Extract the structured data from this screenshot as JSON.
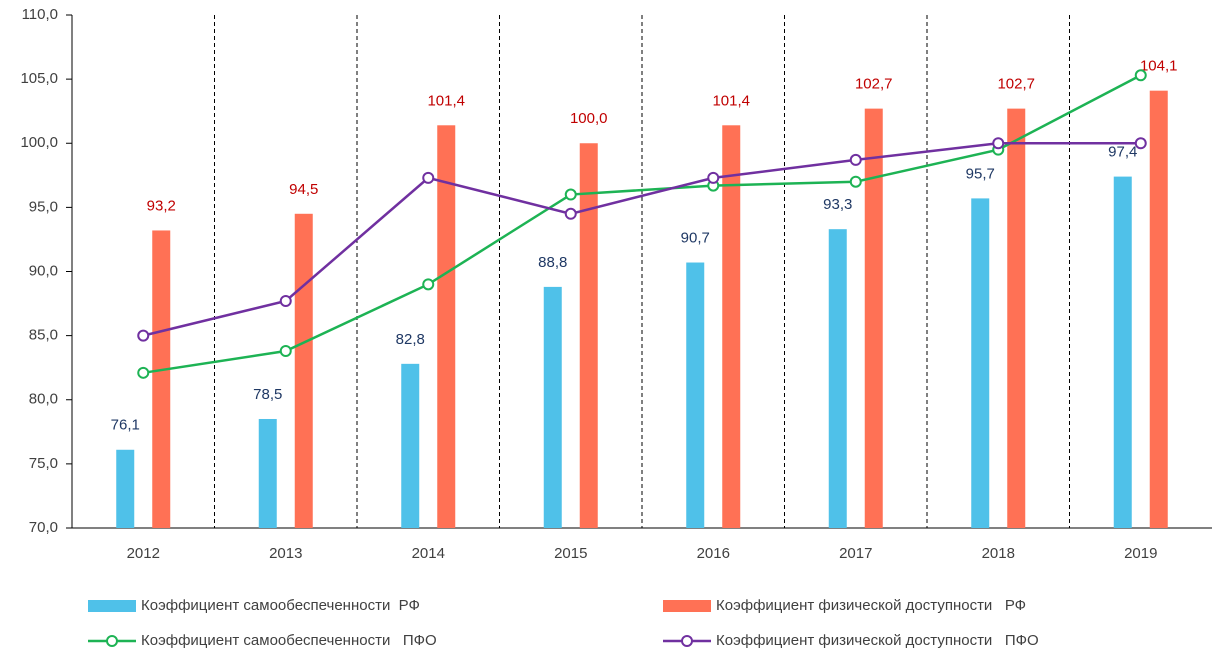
{
  "chart_data": {
    "type": "combo",
    "categories": [
      "2012",
      "2013",
      "2014",
      "2015",
      "2016",
      "2017",
      "2018",
      "2019"
    ],
    "ylim": [
      70,
      110
    ],
    "yticks": [
      {
        "value": 70,
        "label": "70,0"
      },
      {
        "value": 75,
        "label": "75,0"
      },
      {
        "value": 80,
        "label": "80,0"
      },
      {
        "value": 85,
        "label": "85,0"
      },
      {
        "value": 90,
        "label": "90,0"
      },
      {
        "value": 95,
        "label": "95,0"
      },
      {
        "value": 100,
        "label": "100,0"
      },
      {
        "value": 105,
        "label": "105,0"
      },
      {
        "value": 110,
        "label": "110,0"
      }
    ],
    "legend": "bottom",
    "series": [
      {
        "name": "Коэффициент самообеспеченности  РФ",
        "type": "bar",
        "color": "#4fc1e9",
        "label_color": "#1f3864",
        "values": [
          76.1,
          78.5,
          82.8,
          88.8,
          90.7,
          93.3,
          95.7,
          97.4
        ],
        "value_labels": [
          "76,1",
          "78,5",
          "82,8",
          "88,8",
          "90,7",
          "93,3",
          "95,7",
          "97,4"
        ]
      },
      {
        "name": "Коэффициент физической доступности   РФ",
        "type": "bar",
        "color": "#ff7155",
        "label_color": "#c00000",
        "values": [
          93.2,
          94.5,
          101.4,
          100.0,
          101.4,
          102.7,
          102.7,
          104.1
        ],
        "value_labels": [
          "93,2",
          "94,5",
          "101,4",
          "100,0",
          "101,4",
          "102,7",
          "102,7",
          "104,1"
        ]
      },
      {
        "name": "Коэффициент самообеспеченности   ПФО",
        "type": "line",
        "color": "#1db354",
        "values": [
          82.1,
          83.8,
          89.0,
          96.0,
          96.7,
          97.0,
          99.5,
          105.3
        ]
      },
      {
        "name": "Коэффициент физической доступности   ПФО",
        "type": "line",
        "color": "#7030a0",
        "values": [
          85.0,
          87.7,
          97.3,
          94.5,
          97.3,
          98.7,
          100.0,
          100.0
        ]
      }
    ]
  }
}
